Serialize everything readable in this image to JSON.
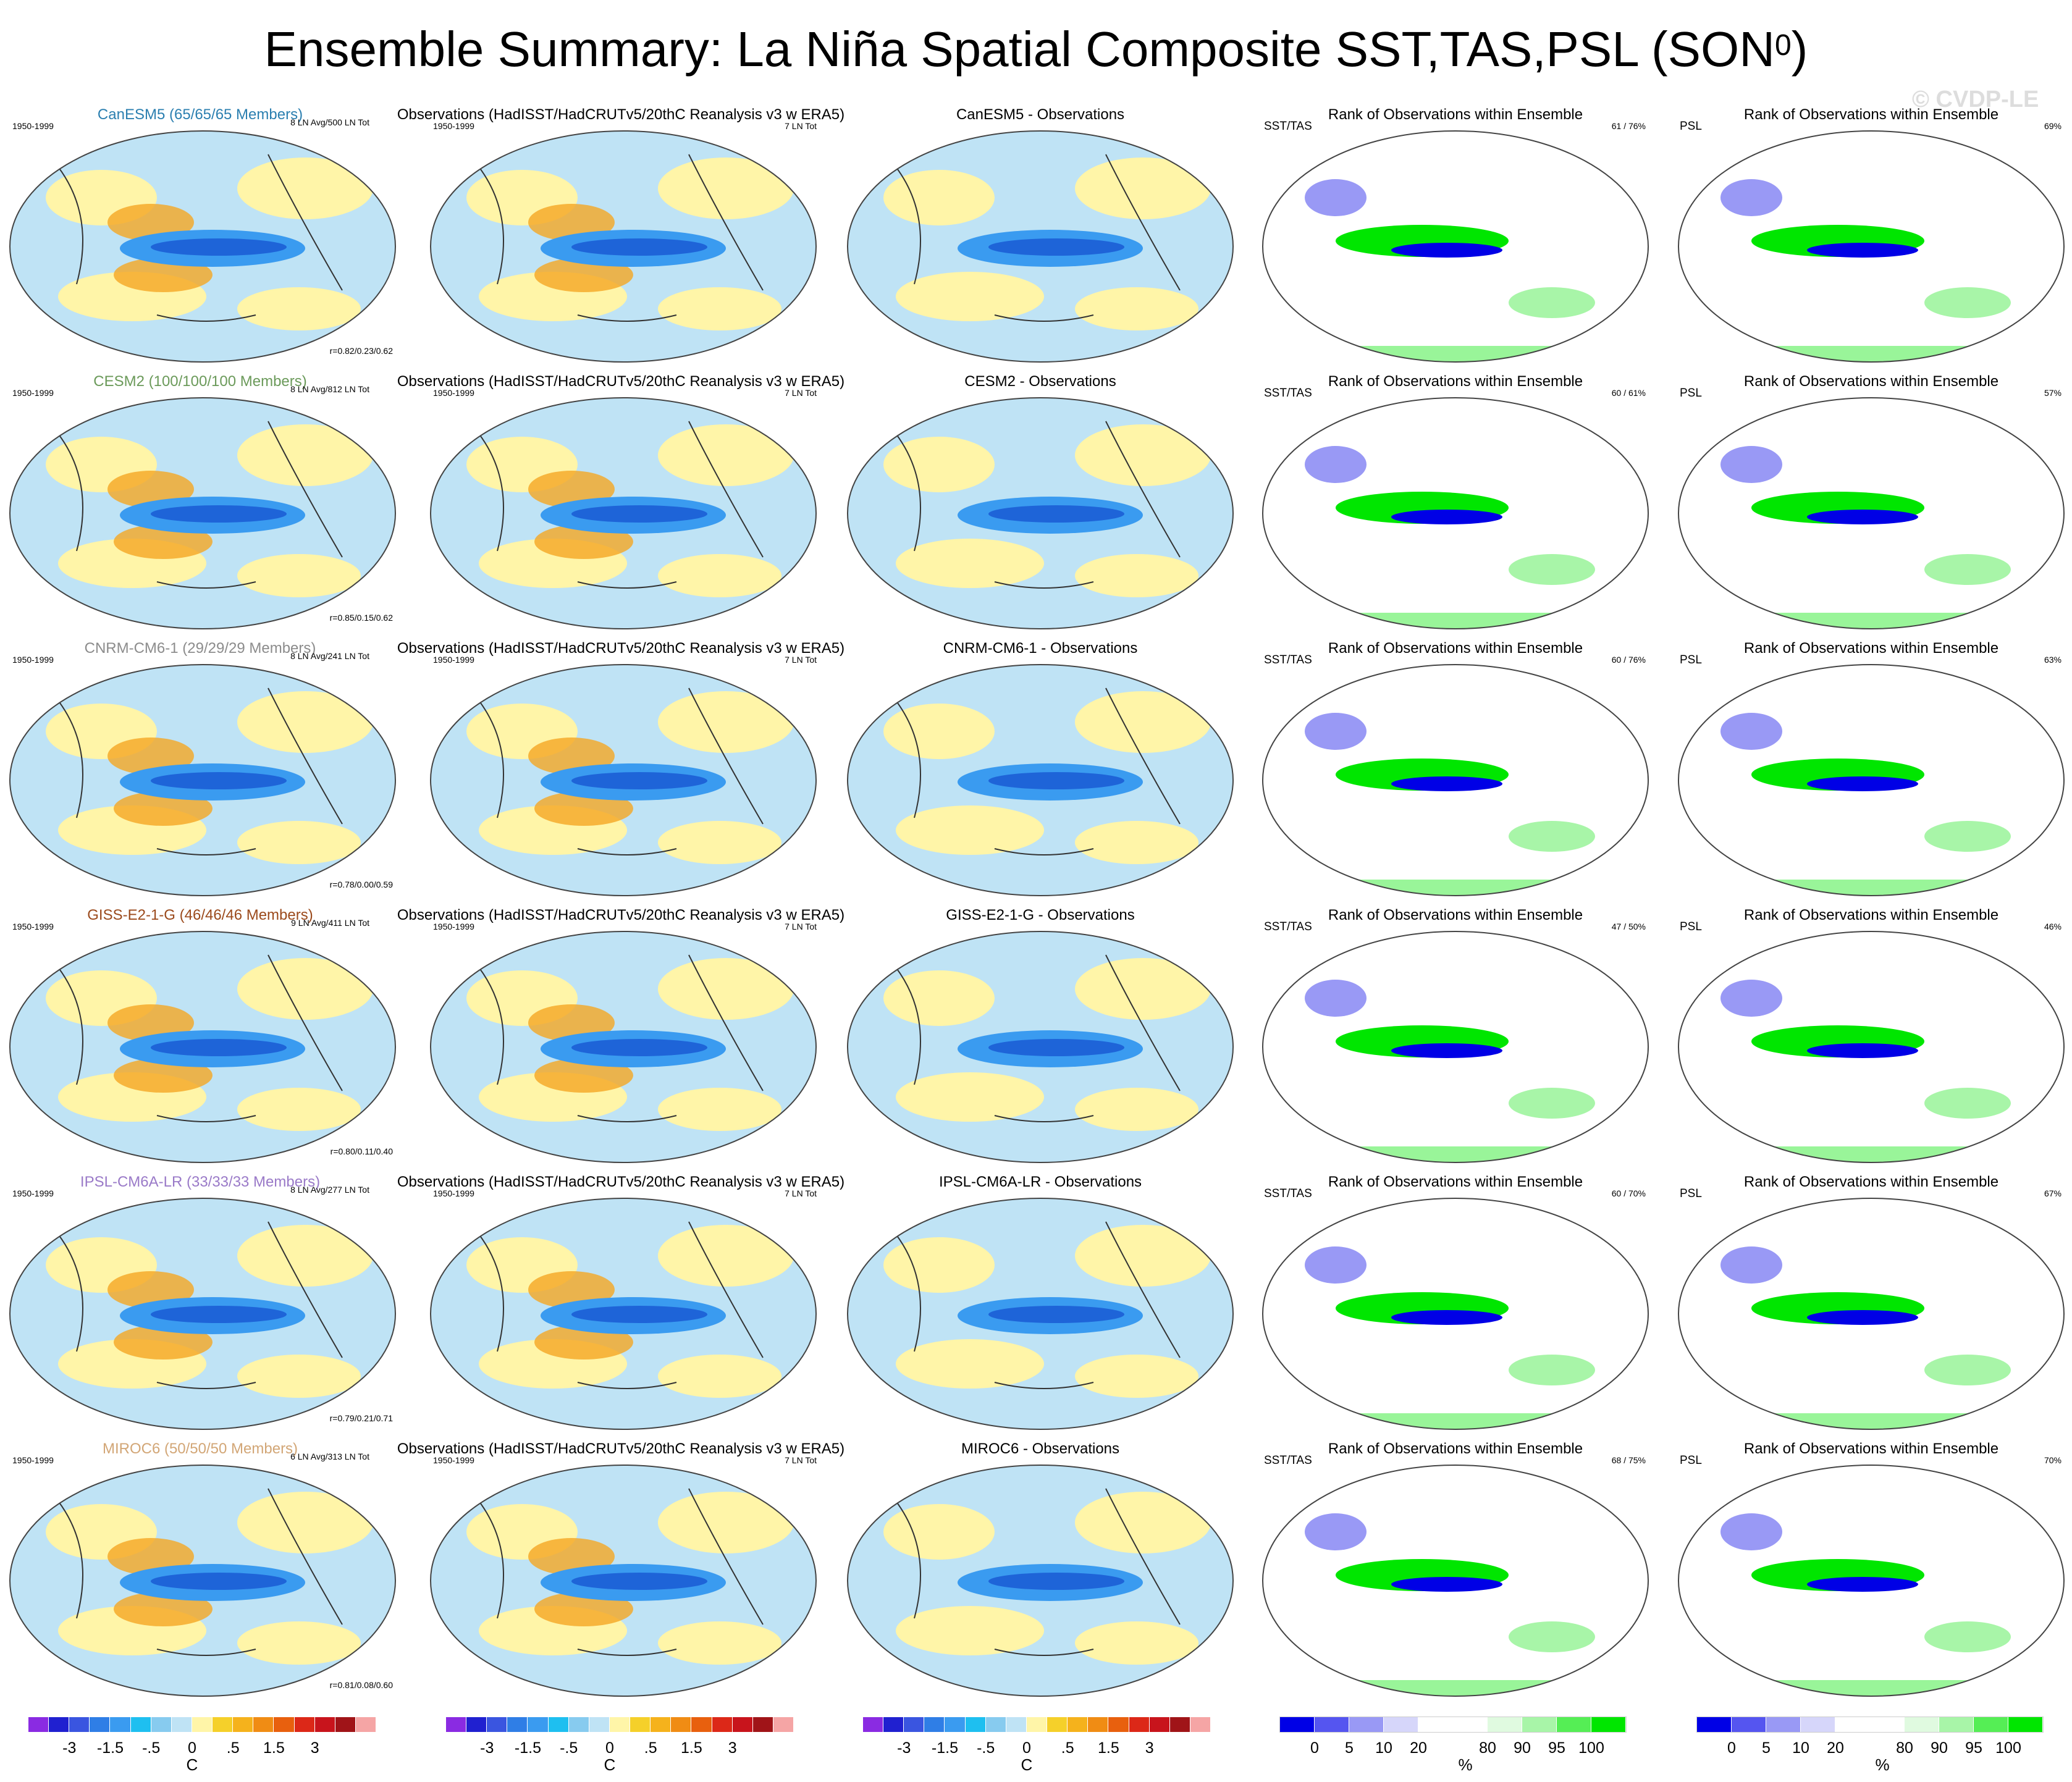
{
  "title": "Ensemble Summary: La Niña Spatial Composite SST,TAS,PSL (SON",
  "title_sup": "0",
  "title_close": ")",
  "watermark": "© CVDP-LE",
  "obs_title": "Observations (HadISST/HadCRUTv5/20thC Reanalysis v3 w ERA5)",
  "obs_period": "1950-1999",
  "obs_count": "7 LN Tot",
  "rank_title": "Rank of Observations within Ensemble",
  "rank_sst_tag": "SST/TAS",
  "rank_psl_tag": "PSL",
  "colors": {
    "cold": "#1e64d8",
    "warm": "#f5a623",
    "rank_low": "#0000e6",
    "rank_high": "#00e600"
  },
  "rows": [
    {
      "model_title": "CanESM5 (65/65/65 Members)",
      "title_color": "#2b7fb0",
      "period": "1950-1999",
      "ln_stats": "8 LN Avg/500 LN Tot",
      "corr": "r=0.82/0.23/0.62",
      "diff_title": "CanESM5 - Observations",
      "sst_rank": "61 /  76%",
      "psl_rank": "69%"
    },
    {
      "model_title": "CESM2 (100/100/100 Members)",
      "title_color": "#6b9a5a",
      "period": "1950-1999",
      "ln_stats": "8 LN Avg/812 LN Tot",
      "corr": "r=0.85/0.15/0.62",
      "diff_title": "CESM2 - Observations",
      "sst_rank": "60 /  61%",
      "psl_rank": "57%"
    },
    {
      "model_title": "CNRM-CM6-1 (29/29/29 Members)",
      "title_color": "#8c8c8c",
      "period": "1950-1999",
      "ln_stats": "8 LN Avg/241 LN Tot",
      "corr": "r=0.78/0.00/0.59",
      "diff_title": "CNRM-CM6-1 - Observations",
      "sst_rank": "60 /  76%",
      "psl_rank": "63%"
    },
    {
      "model_title": "GISS-E2-1-G (46/46/46 Members)",
      "title_color": "#9b4a1c",
      "period": "1950-1999",
      "ln_stats": "9 LN Avg/411 LN Tot",
      "corr": "r=0.80/0.11/0.40",
      "diff_title": "GISS-E2-1-G - Observations",
      "sst_rank": "47 /  50%",
      "psl_rank": "46%"
    },
    {
      "model_title": "IPSL-CM6A-LR (33/33/33 Members)",
      "title_color": "#9a7ac8",
      "period": "1950-1999",
      "ln_stats": "8 LN Avg/277 LN Tot",
      "corr": "r=0.79/0.21/0.71",
      "diff_title": "IPSL-CM6A-LR - Observations",
      "sst_rank": "60 /  70%",
      "psl_rank": "67%"
    },
    {
      "model_title": "MIROC6 (50/50/50 Members)",
      "title_color": "#d2a676",
      "period": "1950-1999",
      "ln_stats": "6 LN Avg/313 LN Tot",
      "corr": "r=0.81/0.08/0.60",
      "diff_title": "MIROC6 - Observations",
      "sst_rank": "68 /  75%",
      "psl_rank": "70%"
    }
  ],
  "temp_colorbar": {
    "colors": [
      "#8a2be2",
      "#2020d0",
      "#3a55e0",
      "#2f7ee6",
      "#3a9bf0",
      "#1ebff0",
      "#87cbef",
      "#bfe3f5",
      "#fff5a8",
      "#f5d02a",
      "#f5b21c",
      "#f08c14",
      "#e8600e",
      "#dc2818",
      "#c8141c",
      "#a01418",
      "#f5a5a5"
    ],
    "ticks": [
      "-3",
      "-1.5",
      "-.5",
      "0",
      ".5",
      "1.5",
      "3"
    ],
    "unit": "C"
  },
  "rank_colorbar": {
    "colors": [
      "#0000e6",
      "#5555f0",
      "#9999f5",
      "#d6d6fa",
      "#ffffff",
      "#ffffff",
      "#e0fae0",
      "#a8f5a8",
      "#55ee55",
      "#00e600"
    ],
    "ticks": [
      "0",
      "5",
      "10",
      "20",
      "80",
      "90",
      "95",
      "100"
    ],
    "unit": "%"
  }
}
